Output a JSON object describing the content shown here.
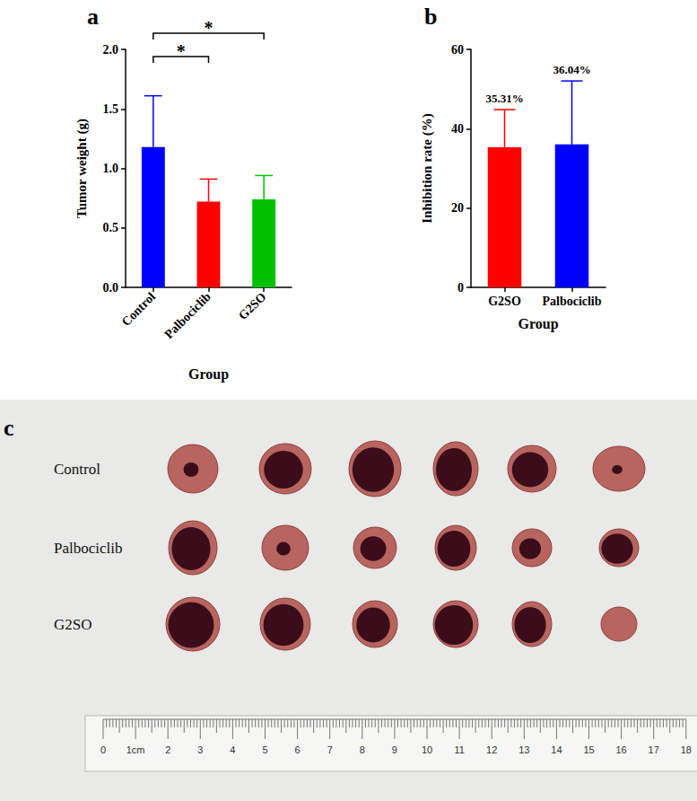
{
  "chart_data": [
    {
      "type": "bar",
      "panel": "a",
      "x_label": "Group",
      "y_label": "Tumor weight (g)",
      "categories": [
        "Control",
        "Palbociclib",
        "G2SO"
      ],
      "values": [
        1.18,
        0.72,
        0.74
      ],
      "errors": [
        0.43,
        0.19,
        0.2
      ],
      "colors": [
        "#0000ff",
        "#ff0000",
        "#00c000"
      ],
      "ylim": [
        0,
        2
      ],
      "yticks": [
        {
          "value": 0,
          "label": "0.0"
        },
        {
          "value": 0.5,
          "label": "0.5"
        },
        {
          "value": 1,
          "label": "1.0"
        },
        {
          "value": 1.5,
          "label": "1.5"
        },
        {
          "value": 2,
          "label": "2.0"
        }
      ],
      "annotations": [
        {
          "text": "*",
          "from": "Control",
          "to": "Palbociclib"
        },
        {
          "text": "*",
          "from": "Control",
          "to": "G2SO"
        }
      ]
    },
    {
      "type": "bar",
      "panel": "b",
      "x_label": "Group",
      "y_label": "Inhibition rate (%)",
      "categories": [
        "G2SO",
        "Palbociclib"
      ],
      "values": [
        35.31,
        36.04
      ],
      "value_labels": [
        "35.31%",
        "36.04%"
      ],
      "data_labels": true,
      "errors": [
        9.5,
        16
      ],
      "colors": [
        "#ff0000",
        "#0000ff"
      ],
      "ylim": [
        0,
        60
      ],
      "yticks": [
        0,
        20,
        40,
        60
      ]
    }
  ],
  "photo": {
    "panel": "c",
    "rows": [
      "Control",
      "Palbociclib",
      "G2SO"
    ],
    "ruler_labels": [
      "0",
      "1cm",
      "2",
      "3",
      "4",
      "5",
      "6",
      "7",
      "8",
      "9",
      "10",
      "11",
      "12",
      "13",
      "14",
      "15",
      "16",
      "17",
      "18"
    ]
  }
}
